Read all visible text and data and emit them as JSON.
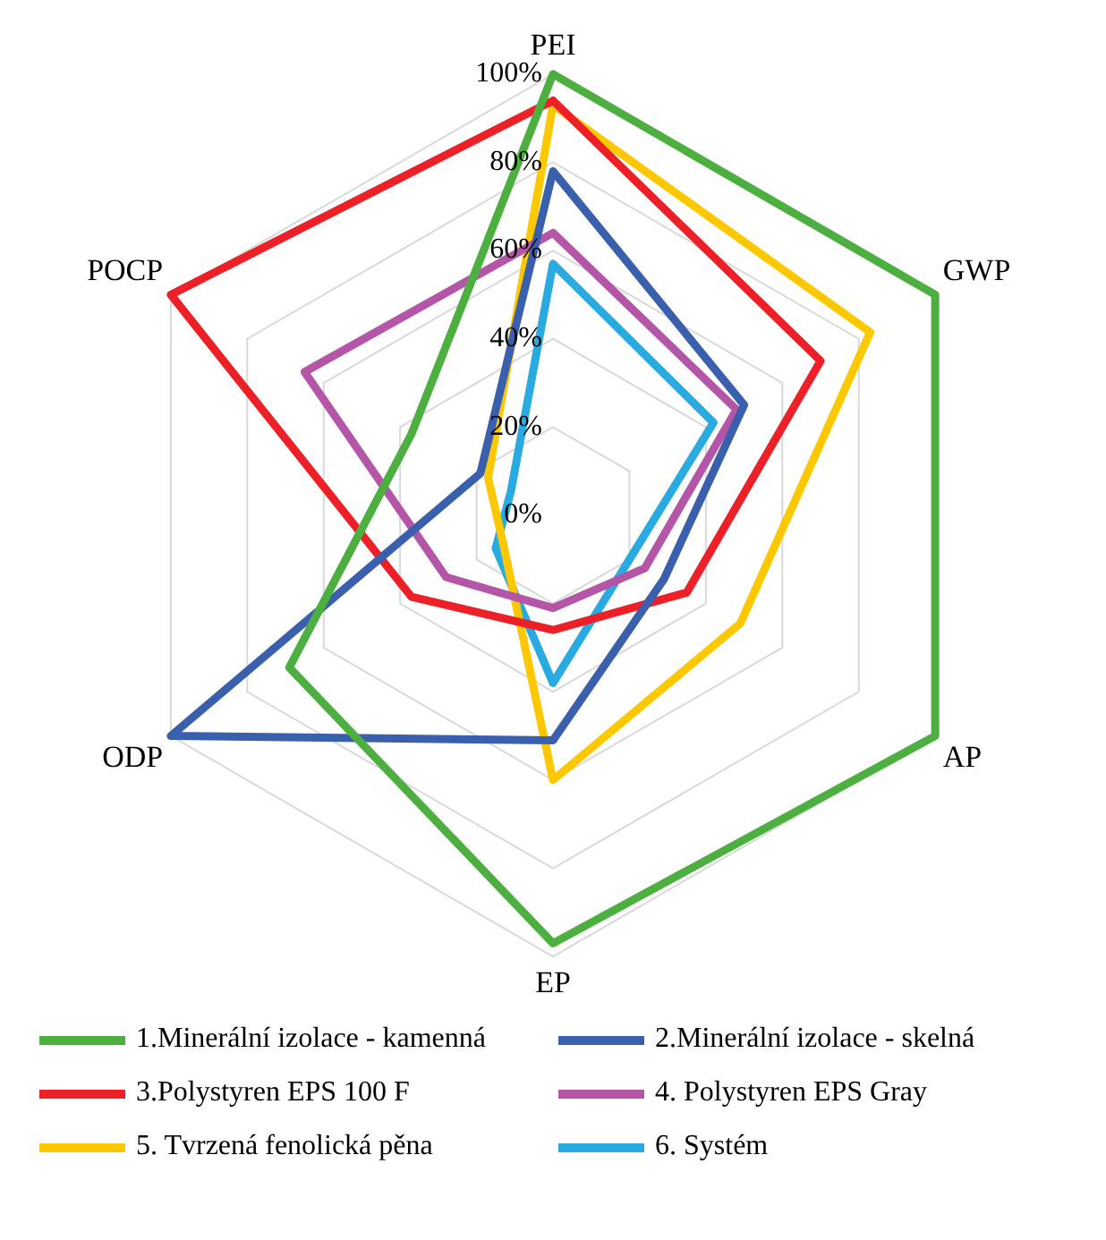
{
  "chart_data": {
    "type": "radar",
    "categories": [
      "PEI",
      "GWP",
      "AP",
      "EP",
      "ODP",
      "POCP"
    ],
    "ylim": [
      0,
      100
    ],
    "yticks": [
      {
        "value": 0,
        "label": "0%"
      },
      {
        "value": 20,
        "label": "20%"
      },
      {
        "value": 40,
        "label": "40%"
      },
      {
        "value": 60,
        "label": "60%"
      },
      {
        "value": 80,
        "label": "80%"
      },
      {
        "value": 100,
        "label": "100%"
      }
    ],
    "grid": true,
    "legend": "bottom",
    "marker": "none",
    "line_style": "solid",
    "series": [
      {
        "name": "1.Minerální izolace - kamenná",
        "color": "#4caf3f",
        "values": [
          100,
          100,
          100,
          97,
          69,
          37
        ]
      },
      {
        "name": "2.Minerální izolace - skelná",
        "color": "#3a5fad",
        "values": [
          78,
          50,
          29,
          51,
          100,
          19
        ]
      },
      {
        "name": "3.Polystyren EPS 100 F",
        "color": "#ee2027",
        "values": [
          94,
          70,
          35,
          26,
          37,
          100
        ]
      },
      {
        "name": "4. Polystyren EPS Gray",
        "color": "#b455a8",
        "values": [
          64,
          48,
          24,
          21,
          28,
          65
        ]
      },
      {
        "name": "5. Tvrzená fenolická pěna",
        "color": "#fdc800",
        "values": [
          93,
          83,
          49,
          60,
          13,
          17
        ]
      },
      {
        "name": "6. Systém",
        "color": "#29aae1",
        "values": [
          57,
          42,
          20,
          38,
          15,
          11
        ]
      }
    ]
  }
}
